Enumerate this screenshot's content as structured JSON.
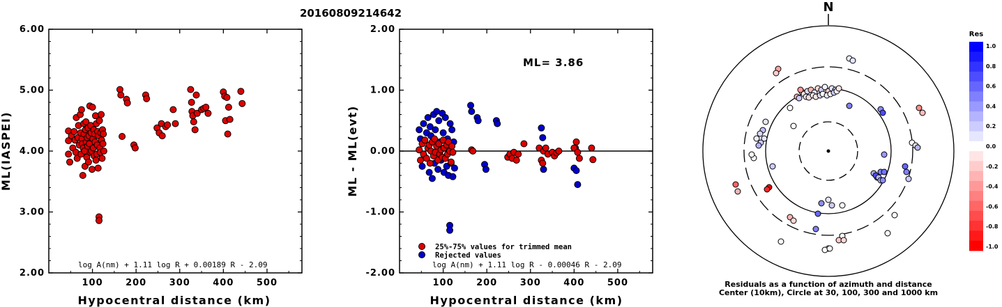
{
  "title": "20160809214642",
  "chart_data": [
    {
      "type": "scatter",
      "name": "left",
      "xlabel": "Hypocentral distance (km)",
      "ylabel": "ML(IASPEI)",
      "xlim": [
        0,
        580
      ],
      "ylim": [
        2.0,
        6.0
      ],
      "xticks": [
        "100",
        "200",
        "300",
        "400",
        "500"
      ],
      "yticks": [
        "2.00",
        "3.00",
        "4.00",
        "5.00",
        "6.00"
      ],
      "formula": "log A(nm) + 1.11 log R + 0.00189 R - 2.09",
      "points": [
        [
          45,
          4.33
        ],
        [
          45,
          4.17
        ],
        [
          45,
          3.95
        ],
        [
          48,
          3.82
        ],
        [
          52,
          4.25
        ],
        [
          55,
          4.05
        ],
        [
          58,
          4.32
        ],
        [
          60,
          4.18
        ],
        [
          62,
          3.98
        ],
        [
          63,
          4.55
        ],
        [
          65,
          3.88
        ],
        [
          67,
          4.22
        ],
        [
          68,
          4.42
        ],
        [
          70,
          4.1
        ],
        [
          72,
          4.6
        ],
        [
          73,
          4.3
        ],
        [
          74,
          3.95
        ],
        [
          75,
          4.68
        ],
        [
          76,
          4.2
        ],
        [
          77,
          4.12
        ],
        [
          78,
          3.6
        ],
        [
          79,
          4.05
        ],
        [
          80,
          4.45
        ],
        [
          81,
          4.28
        ],
        [
          82,
          4.0
        ],
        [
          83,
          3.75
        ],
        [
          84,
          4.35
        ],
        [
          85,
          4.48
        ],
        [
          86,
          4.15
        ],
        [
          87,
          3.9
        ],
        [
          88,
          4.22
        ],
        [
          89,
          4.08
        ],
        [
          90,
          4.38
        ],
        [
          91,
          3.82
        ],
        [
          92,
          4.25
        ],
        [
          93,
          4.12
        ],
        [
          94,
          4.74
        ],
        [
          95,
          3.98
        ],
        [
          96,
          4.42
        ],
        [
          97,
          4.3
        ],
        [
          98,
          4.0
        ],
        [
          99,
          3.7
        ],
        [
          100,
          4.72
        ],
        [
          101,
          4.2
        ],
        [
          102,
          4.05
        ],
        [
          103,
          4.35
        ],
        [
          104,
          3.92
        ],
        [
          105,
          4.28
        ],
        [
          106,
          4.15
        ],
        [
          107,
          4.58
        ],
        [
          108,
          3.85
        ],
        [
          109,
          4.45
        ],
        [
          110,
          3.95
        ],
        [
          111,
          4.1
        ],
        [
          112,
          4.32
        ],
        [
          113,
          3.72
        ],
        [
          114,
          4.25
        ],
        [
          115,
          2.92
        ],
        [
          115,
          2.86
        ],
        [
          116,
          4.5
        ],
        [
          117,
          4.05
        ],
        [
          118,
          3.98
        ],
        [
          119,
          4.3
        ],
        [
          120,
          4.6
        ],
        [
          121,
          4.18
        ],
        [
          122,
          3.88
        ],
        [
          123,
          4.35
        ],
        [
          124,
          4.12
        ],
        [
          125,
          4.28
        ],
        [
          126,
          4.0
        ],
        [
          163,
          5.01
        ],
        [
          165,
          4.92
        ],
        [
          168,
          4.24
        ],
        [
          178,
          4.85
        ],
        [
          180,
          4.79
        ],
        [
          195,
          4.1
        ],
        [
          198,
          4.05
        ],
        [
          222,
          4.92
        ],
        [
          224,
          4.86
        ],
        [
          248,
          4.38
        ],
        [
          253,
          4.3
        ],
        [
          258,
          4.45
        ],
        [
          260,
          4.25
        ],
        [
          268,
          4.4
        ],
        [
          272,
          4.43
        ],
        [
          285,
          4.68
        ],
        [
          290,
          4.45
        ],
        [
          325,
          5.01
        ],
        [
          327,
          4.8
        ],
        [
          328,
          4.65
        ],
        [
          330,
          4.58
        ],
        [
          332,
          4.48
        ],
        [
          335,
          4.35
        ],
        [
          338,
          4.92
        ],
        [
          340,
          4.62
        ],
        [
          350,
          4.68
        ],
        [
          355,
          4.7
        ],
        [
          360,
          4.72
        ],
        [
          365,
          4.62
        ],
        [
          400,
          4.97
        ],
        [
          403,
          4.9
        ],
        [
          405,
          4.5
        ],
        [
          408,
          4.88
        ],
        [
          410,
          4.28
        ],
        [
          412,
          4.72
        ],
        [
          415,
          4.52
        ],
        [
          440,
          4.98
        ],
        [
          443,
          4.78
        ]
      ]
    },
    {
      "type": "scatter",
      "name": "middle",
      "xlabel": "Hypocentral distance (km)",
      "ylabel": "ML - ML(evt)",
      "xlim": [
        0,
        580
      ],
      "ylim": [
        -2.0,
        2.0
      ],
      "xticks": [
        "100",
        "200",
        "300",
        "400",
        "500"
      ],
      "yticks": [
        "-2.00",
        "-1.00",
        "0.00",
        "1.00",
        "2.00"
      ],
      "annotation": "ML= 3.86",
      "formula": "log A(nm) + 1.11 log R - 0.00046 R - 2.09",
      "legend": [
        "25%-75% values for trimmed mean",
        "Rejected values"
      ],
      "colors": {
        "trimmed": "#dd0000",
        "rejected": "#0000cc"
      },
      "trimmed": [
        [
          45,
          0.02
        ],
        [
          48,
          -0.15
        ],
        [
          52,
          0.12
        ],
        [
          55,
          -0.05
        ],
        [
          58,
          0.18
        ],
        [
          62,
          -0.12
        ],
        [
          65,
          0.05
        ],
        [
          68,
          0.1
        ],
        [
          70,
          -0.2
        ],
        [
          72,
          0.0
        ],
        [
          75,
          0.15
        ],
        [
          78,
          -0.08
        ],
        [
          80,
          0.2
        ],
        [
          82,
          -0.02
        ],
        [
          85,
          0.08
        ],
        [
          88,
          -0.15
        ],
        [
          90,
          0.12
        ],
        [
          92,
          -0.05
        ],
        [
          95,
          0.02
        ],
        [
          98,
          -0.1
        ],
        [
          100,
          0.18
        ],
        [
          102,
          0.05
        ],
        [
          105,
          -0.12
        ],
        [
          108,
          0.1
        ],
        [
          110,
          -0.05
        ],
        [
          112,
          0.15
        ],
        [
          115,
          0.0
        ],
        [
          118,
          -0.18
        ],
        [
          120,
          0.08
        ],
        [
          122,
          -0.02
        ],
        [
          165,
          0.02
        ],
        [
          168,
          0.0
        ],
        [
          248,
          -0.1
        ],
        [
          253,
          -0.05
        ],
        [
          258,
          -0.12
        ],
        [
          262,
          -0.02
        ],
        [
          268,
          -0.15
        ],
        [
          272,
          -0.05
        ],
        [
          285,
          0.12
        ],
        [
          320,
          0.05
        ],
        [
          325,
          -0.15
        ],
        [
          328,
          -0.2
        ],
        [
          330,
          0.0
        ],
        [
          335,
          0.05
        ],
        [
          340,
          -0.05
        ],
        [
          350,
          -0.02
        ],
        [
          355,
          -0.08
        ],
        [
          360,
          -0.03
        ],
        [
          365,
          0.0
        ],
        [
          400,
          0.05
        ],
        [
          405,
          0.15
        ],
        [
          408,
          -0.02
        ],
        [
          412,
          -0.12
        ],
        [
          440,
          0.05
        ],
        [
          443,
          -0.14
        ]
      ],
      "rejected": [
        [
          45,
          0.35
        ],
        [
          48,
          0.2
        ],
        [
          52,
          -0.25
        ],
        [
          55,
          0.45
        ],
        [
          58,
          -0.1
        ],
        [
          62,
          0.3
        ],
        [
          65,
          0.55
        ],
        [
          68,
          -0.35
        ],
        [
          70,
          0.4
        ],
        [
          72,
          0.25
        ],
        [
          75,
          -0.45
        ],
        [
          78,
          0.6
        ],
        [
          80,
          -0.2
        ],
        [
          82,
          0.35
        ],
        [
          85,
          0.65
        ],
        [
          88,
          -0.3
        ],
        [
          90,
          0.5
        ],
        [
          92,
          0.15
        ],
        [
          95,
          -0.15
        ],
        [
          98,
          0.62
        ],
        [
          100,
          0.3
        ],
        [
          102,
          -0.35
        ],
        [
          105,
          0.55
        ],
        [
          108,
          -0.25
        ],
        [
          110,
          0.2
        ],
        [
          112,
          -0.4
        ],
        [
          115,
          -1.22
        ],
        [
          115,
          -1.3
        ],
        [
          116,
          0.45
        ],
        [
          118,
          -0.2
        ],
        [
          120,
          0.35
        ],
        [
          122,
          -0.42
        ],
        [
          124,
          0.15
        ],
        [
          126,
          -0.28
        ],
        [
          163,
          0.75
        ],
        [
          165,
          0.65
        ],
        [
          178,
          0.55
        ],
        [
          180,
          0.5
        ],
        [
          195,
          -0.22
        ],
        [
          198,
          -0.3
        ],
        [
          222,
          0.5
        ],
        [
          224,
          0.45
        ],
        [
          325,
          0.38
        ],
        [
          328,
          0.22
        ],
        [
          330,
          -0.3
        ],
        [
          400,
          -0.28
        ],
        [
          403,
          0.05
        ],
        [
          405,
          -0.32
        ],
        [
          408,
          -0.55
        ]
      ]
    },
    {
      "type": "scatter",
      "name": "polar",
      "north_label": "N",
      "caption_line1": "Residuals as a function of azimuth and distance",
      "caption_line2": "Center (10km), Circle at 30, 100, 300 and 1000 km",
      "colorbar_title": "Res",
      "colorbar_ticks": [
        "1.0",
        "0.8",
        "0.6",
        "0.4",
        "0.2",
        "0.0",
        "-0.2",
        "-0.4",
        "-0.6",
        "-0.8",
        "-1.0"
      ],
      "points_xy_res": [
        [
          -72,
          118,
          -0.35
        ],
        [
          -75,
          112,
          -0.2
        ],
        [
          30,
          133,
          0.05
        ],
        [
          35,
          130,
          0.1
        ],
        [
          -38,
          85,
          -0.25
        ],
        [
          -40,
          88,
          -0.4
        ],
        [
          -35,
          82,
          -0.1
        ],
        [
          -30,
          86,
          0.15
        ],
        [
          -25,
          88,
          -0.3
        ],
        [
          -20,
          84,
          0.1
        ],
        [
          -15,
          90,
          -0.15
        ],
        [
          -10,
          88,
          0.2
        ],
        [
          -5,
          92,
          0.05
        ],
        [
          0,
          86,
          -0.2
        ],
        [
          5,
          90,
          0.1
        ],
        [
          10,
          88,
          0.25
        ],
        [
          -45,
          78,
          -0.3
        ],
        [
          -42,
          76,
          0.2
        ],
        [
          -32,
          78,
          0.1
        ],
        [
          -28,
          77,
          -0.15
        ],
        [
          -22,
          80,
          0.05
        ],
        [
          -18,
          78,
          -0.1
        ],
        [
          -12,
          80,
          0.15
        ],
        [
          -8,
          82,
          0.0
        ],
        [
          -2,
          80,
          0.1
        ],
        [
          3,
          82,
          -0.05
        ],
        [
          8,
          84,
          0.2
        ],
        [
          12,
          86,
          0.0
        ],
        [
          15,
          90,
          -0.1
        ],
        [
          -55,
          62,
          0.0
        ],
        [
          30,
          65,
          0.5
        ],
        [
          75,
          60,
          0.45
        ],
        [
          78,
          55,
          0.7
        ],
        [
          -50,
          36,
          0.0
        ],
        [
          -90,
          42,
          0.1
        ],
        [
          -94,
          30,
          0.25
        ],
        [
          -92,
          18,
          0.1
        ],
        [
          -97,
          12,
          0.2
        ],
        [
          -103,
          18,
          0.05
        ],
        [
          -98,
          25,
          0.15
        ],
        [
          -100,
          8,
          0.3
        ],
        [
          -107,
          -10,
          0.0
        ],
        [
          -110,
          -5,
          0.0
        ],
        [
          -80,
          -22,
          0.2
        ],
        [
          130,
          62,
          -0.45
        ],
        [
          135,
          55,
          -0.25
        ],
        [
          120,
          12,
          0.0
        ],
        [
          125,
          8,
          0.1
        ],
        [
          128,
          5,
          0.3
        ],
        [
          80,
          -5,
          0.4
        ],
        [
          75,
          -30,
          0.5
        ],
        [
          70,
          -38,
          0.6
        ],
        [
          65,
          -32,
          0.35
        ],
        [
          68,
          -35,
          0.7
        ],
        [
          72,
          -38,
          0.3
        ],
        [
          75,
          -42,
          0.25
        ],
        [
          80,
          -30,
          0.55
        ],
        [
          78,
          -42,
          0.45
        ],
        [
          110,
          -22,
          0.6
        ],
        [
          112,
          -30,
          0.5
        ],
        [
          115,
          -40,
          0.2
        ],
        [
          -133,
          -48,
          -0.6
        ],
        [
          -130,
          -58,
          -0.3
        ],
        [
          -85,
          -52,
          -1.0
        ],
        [
          -88,
          -55,
          -0.85
        ],
        [
          -55,
          -95,
          -0.3
        ],
        [
          -50,
          -100,
          -0.15
        ],
        [
          -15,
          -90,
          0.6
        ],
        [
          -10,
          -75,
          0.45
        ],
        [
          0,
          -70,
          0.1
        ],
        [
          5,
          -78,
          0.2
        ],
        [
          20,
          -78,
          0.0
        ],
        [
          -68,
          -130,
          0.0
        ],
        [
          -18,
          -112,
          0.5
        ],
        [
          20,
          -122,
          0.0
        ],
        [
          15,
          -128,
          -0.2
        ],
        [
          22,
          -128,
          -0.15
        ],
        [
          95,
          -92,
          0.0
        ],
        [
          85,
          -118,
          0.0
        ],
        [
          0,
          -140,
          0.0
        ],
        [
          -5,
          -142,
          0.0
        ],
        [
          2,
          -140,
          0.0
        ]
      ]
    }
  ]
}
